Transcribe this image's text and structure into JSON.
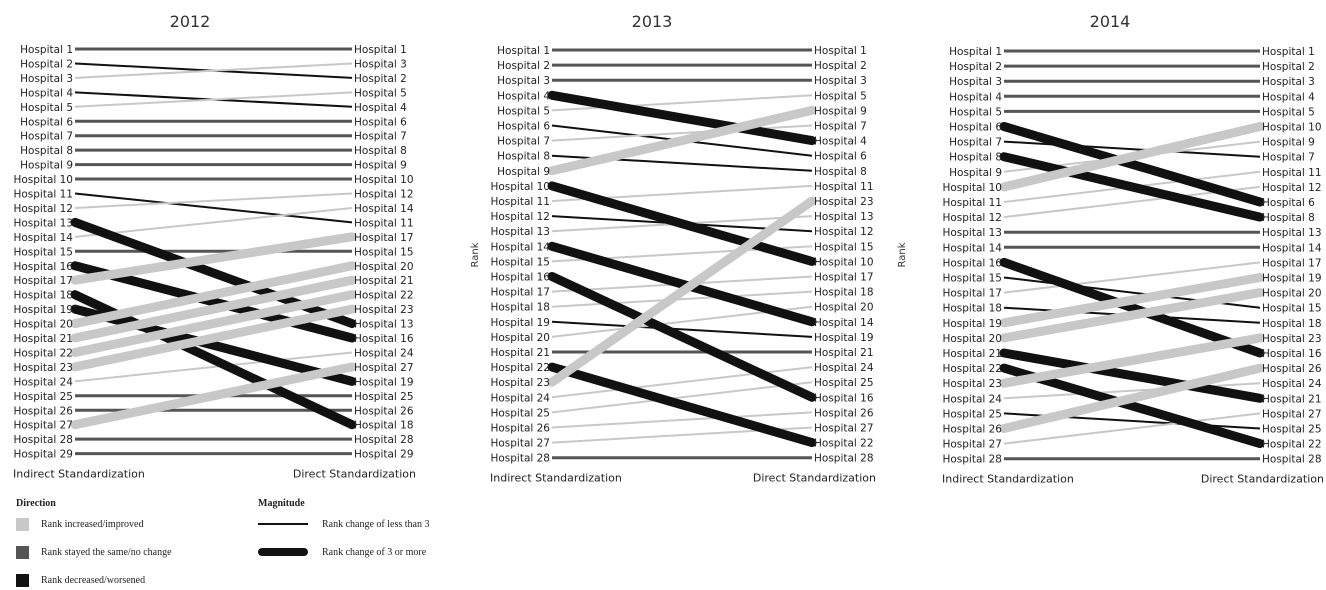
{
  "chart_data": [
    {
      "type": "slope",
      "title": "2012",
      "left_axis_label": "Indirect Standardization",
      "right_axis_label": "Direct Standardization",
      "side_label": "",
      "n": 29,
      "left_order": [
        "Hospital 1",
        "Hospital 2",
        "Hospital 3",
        "Hospital 4",
        "Hospital 5",
        "Hospital 6",
        "Hospital 7",
        "Hospital 8",
        "Hospital 9",
        "Hospital 10",
        "Hospital 11",
        "Hospital 12",
        "Hospital 13",
        "Hospital 14",
        "Hospital 15",
        "Hospital 16",
        "Hospital 17",
        "Hospital 18",
        "Hospital 19",
        "Hospital 20",
        "Hospital 21",
        "Hospital 22",
        "Hospital 23",
        "Hospital 24",
        "Hospital 25",
        "Hospital 26",
        "Hospital 27",
        "Hospital 28",
        "Hospital 29"
      ],
      "right_order": [
        "Hospital 1",
        "Hospital 3",
        "Hospital 2",
        "Hospital 5",
        "Hospital 4",
        "Hospital 6",
        "Hospital 7",
        "Hospital 8",
        "Hospital 9",
        "Hospital 10",
        "Hospital 12",
        "Hospital 14",
        "Hospital 11",
        "Hospital 17",
        "Hospital 15",
        "Hospital 20",
        "Hospital 21",
        "Hospital 22",
        "Hospital 23",
        "Hospital 13",
        "Hospital 16",
        "Hospital 24",
        "Hospital 27",
        "Hospital 19",
        "Hospital 25",
        "Hospital 26",
        "Hospital 18",
        "Hospital 28",
        "Hospital 29"
      ]
    },
    {
      "type": "slope",
      "title": "2013",
      "left_axis_label": "Indirect Standardization",
      "right_axis_label": "Direct Standardization",
      "side_label": "Rank",
      "n": 28,
      "left_order": [
        "Hospital 1",
        "Hospital 2",
        "Hospital 3",
        "Hospital 4",
        "Hospital 5",
        "Hospital 6",
        "Hospital 7",
        "Hospital 8",
        "Hospital 9",
        "Hospital 10",
        "Hospital 11",
        "Hospital 12",
        "Hospital 13",
        "Hospital 14",
        "Hospital 15",
        "Hospital 16",
        "Hospital 17",
        "Hospital 18",
        "Hospital 19",
        "Hospital 20",
        "Hospital 21",
        "Hospital 22",
        "Hospital 23",
        "Hospital 24",
        "Hospital 25",
        "Hospital 26",
        "Hospital 27",
        "Hospital 28"
      ],
      "right_order": [
        "Hospital 1",
        "Hospital 2",
        "Hospital 3",
        "Hospital 5",
        "Hospital 9",
        "Hospital 7",
        "Hospital 4",
        "Hospital 6",
        "Hospital 8",
        "Hospital 11",
        "Hospital 23",
        "Hospital 13",
        "Hospital 12",
        "Hospital 15",
        "Hospital 10",
        "Hospital 17",
        "Hospital 18",
        "Hospital 20",
        "Hospital 14",
        "Hospital 19",
        "Hospital 21",
        "Hospital 24",
        "Hospital 25",
        "Hospital 16",
        "Hospital 26",
        "Hospital 27",
        "Hospital 22",
        "Hospital 28"
      ]
    },
    {
      "type": "slope",
      "title": "2014",
      "left_axis_label": "Indirect Standardization",
      "right_axis_label": "Direct Standardization",
      "side_label": "Rank",
      "n": 28,
      "left_order": [
        "Hospital 1",
        "Hospital 2",
        "Hospital 3",
        "Hospital 4",
        "Hospital 5",
        "Hospital 6",
        "Hospital 7",
        "Hospital 8",
        "Hospital 9",
        "Hospital 10",
        "Hospital 11",
        "Hospital 12",
        "Hospital 13",
        "Hospital 14",
        "Hospital 16",
        "Hospital 15",
        "Hospital 17",
        "Hospital 18",
        "Hospital 19",
        "Hospital 20",
        "Hospital 21",
        "Hospital 22",
        "Hospital 23",
        "Hospital 24",
        "Hospital 25",
        "Hospital 26",
        "Hospital 27",
        "Hospital 28"
      ],
      "right_order": [
        "Hospital 1",
        "Hospital 2",
        "Hospital 3",
        "Hospital 4",
        "Hospital 5",
        "Hospital 10",
        "Hospital 9",
        "Hospital 7",
        "Hospital 11",
        "Hospital 12",
        "Hospital 6",
        "Hospital 8",
        "Hospital 13",
        "Hospital 14",
        "Hospital 17",
        "Hospital 19",
        "Hospital 20",
        "Hospital 15",
        "Hospital 18",
        "Hospital 23",
        "Hospital 16",
        "Hospital 26",
        "Hospital 24",
        "Hospital 21",
        "Hospital 27",
        "Hospital 25",
        "Hospital 22",
        "Hospital 28"
      ]
    }
  ],
  "legend": {
    "direction_title": "Direction",
    "direction_items": [
      {
        "label": "Rank increased/improved",
        "color": "#c8c8c8"
      },
      {
        "label": "Rank stayed the same/no change",
        "color": "#555555"
      },
      {
        "label": "Rank decreased/worsened",
        "color": "#111111"
      }
    ],
    "magnitude_title": "Magnitude",
    "magnitude_items": [
      {
        "label": "Rank change of less than 3",
        "thickness": "thin"
      },
      {
        "label": "Rank change of 3 or more",
        "thickness": "thick"
      }
    ]
  }
}
